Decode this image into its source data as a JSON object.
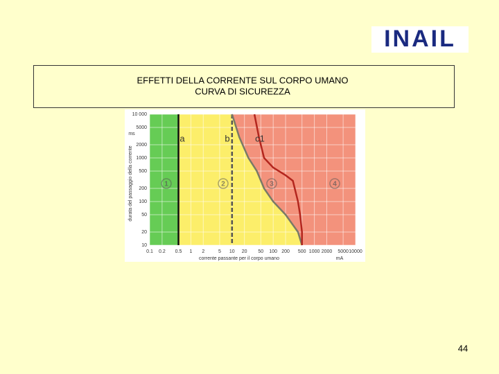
{
  "logo": "INAIL",
  "header": {
    "line1": "EFFETTI DELLA CORRENTE SUL CORPO UMANO",
    "line2": "CURVA DI SICUREZZA"
  },
  "page_number": "44",
  "chart_data": {
    "type": "line",
    "x_label": "corrente passante per il corpo umano",
    "x_unit": "mA",
    "y_label": "durata del passaggio della corrente",
    "y_unit": "ms",
    "xscale": "log",
    "yscale": "log",
    "xlim": [
      0.1,
      10000
    ],
    "ylim": [
      10,
      10000
    ],
    "xticks": [
      0.1,
      0.2,
      0.5,
      1,
      2,
      5,
      10,
      20,
      50,
      100,
      200,
      500,
      1000,
      2000,
      5000,
      10000
    ],
    "yticks": [
      10,
      20,
      50,
      100,
      200,
      500,
      1000,
      2000,
      5000,
      {
        "value": 10000,
        "label": "10 000"
      }
    ],
    "grid": true,
    "zones": [
      {
        "label": "1",
        "color": "#66cc55"
      },
      {
        "label": "2",
        "color": "#fcee6a"
      },
      {
        "label": "3",
        "color": "#f3927c"
      },
      {
        "label": "4",
        "color": "#f3927c"
      }
    ],
    "vlines": [
      {
        "x": 10,
        "color": "#555555",
        "dashed": true
      }
    ],
    "series": [
      {
        "name": "a",
        "color": "#111111",
        "x": [
          0.5,
          0.5
        ],
        "values": [
          10,
          10000
        ]
      },
      {
        "name": "b",
        "color": "#7a7a66",
        "x": [
          10,
          15,
          25,
          40,
          60,
          100,
          200,
          400,
          500
        ],
        "values": [
          10000,
          3000,
          1000,
          500,
          200,
          100,
          50,
          20,
          10
        ]
      },
      {
        "name": "c1",
        "color": "#b3261e",
        "x": [
          35,
          45,
          60,
          100,
          200,
          300,
          400,
          450,
          500,
          500
        ],
        "values": [
          10000,
          3000,
          1000,
          600,
          400,
          300,
          100,
          50,
          20,
          10
        ]
      }
    ]
  }
}
